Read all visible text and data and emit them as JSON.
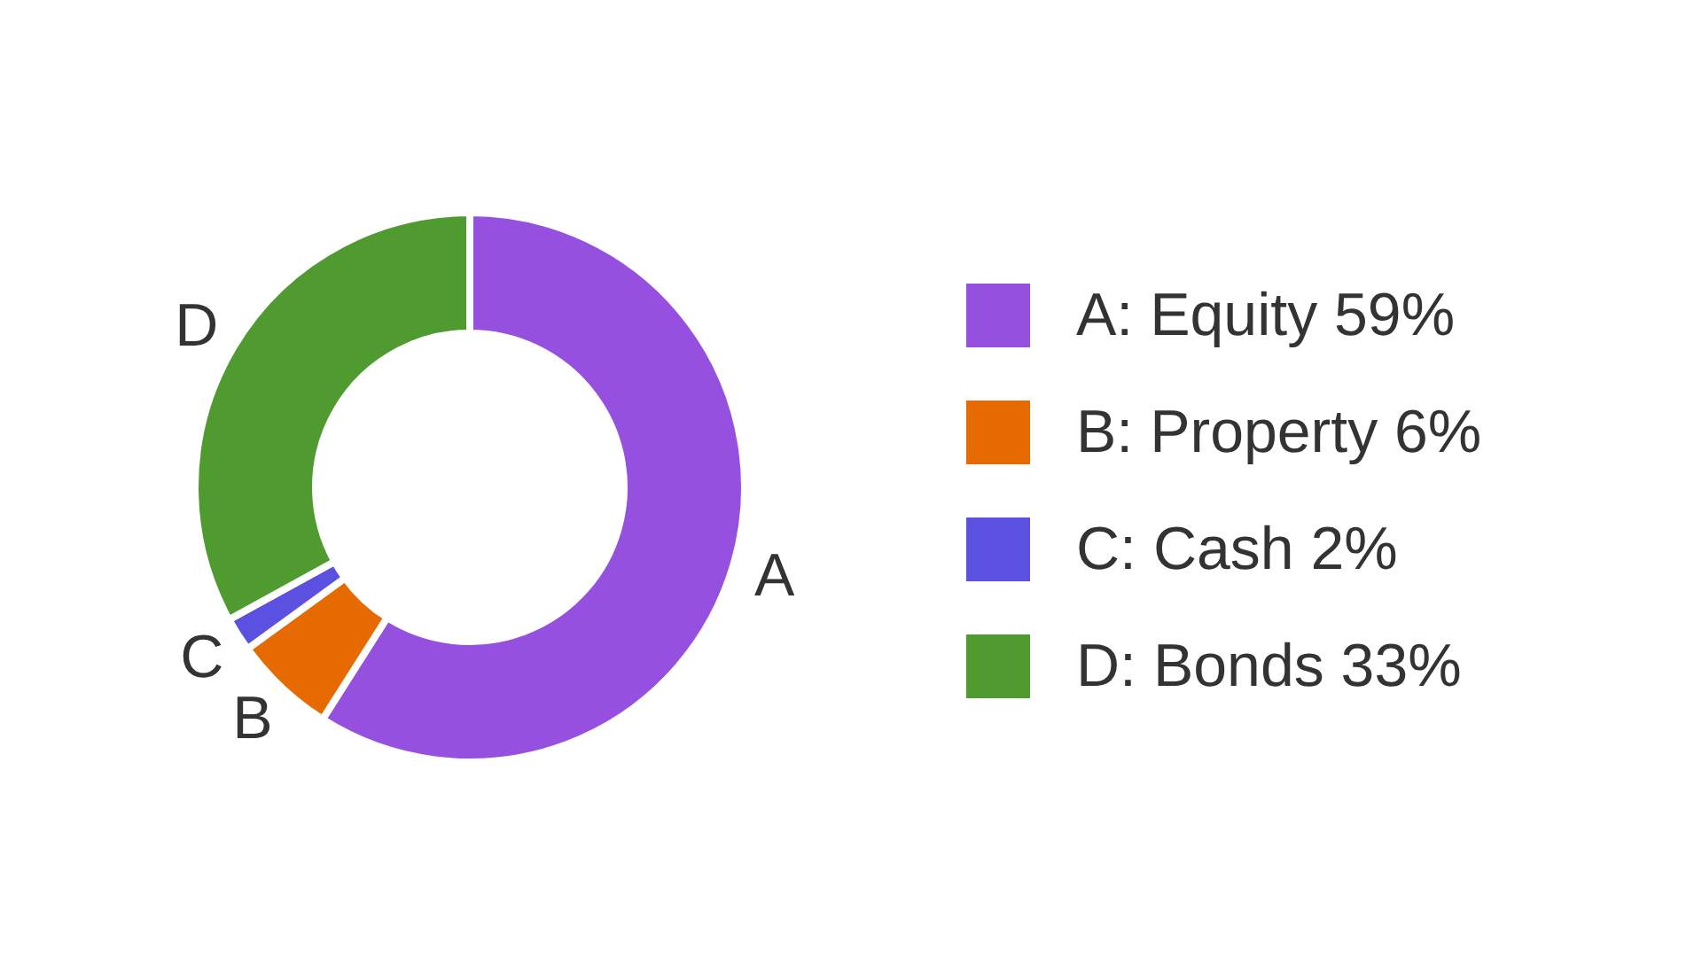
{
  "chart_data": {
    "type": "donut",
    "categories": [
      "A: Equity 59%",
      "B: Property 6%",
      "C: Cash 2%",
      "D: Bonds 33%"
    ],
    "values": [
      59,
      6,
      2,
      33
    ],
    "colors": [
      "#9550e0",
      "#e66a00",
      "#5b50e0",
      "#4f9b2f"
    ],
    "annotations": [
      "A",
      "B",
      "C",
      "D"
    ],
    "legend": "right"
  }
}
